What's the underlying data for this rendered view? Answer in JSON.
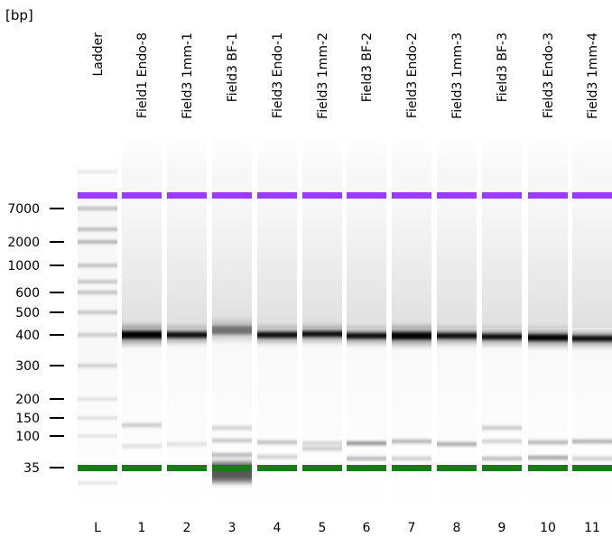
{
  "unit_label": "[bp]",
  "lanes": [
    {
      "num": "L",
      "name": "Ladder"
    },
    {
      "num": "1",
      "name": "Field1 Endo-8"
    },
    {
      "num": "2",
      "name": "Field3 1mm-1"
    },
    {
      "num": "3",
      "name": "Field3 BF-1"
    },
    {
      "num": "4",
      "name": "Field3 Endo-1"
    },
    {
      "num": "5",
      "name": "Field3 1mm-2"
    },
    {
      "num": "6",
      "name": "Field3 BF-2"
    },
    {
      "num": "7",
      "name": "Field3 Endo-2"
    },
    {
      "num": "8",
      "name": "Field3 1mm-3"
    },
    {
      "num": "9",
      "name": "Field3 BF-3"
    },
    {
      "num": "10",
      "name": "Field3 Endo-3"
    },
    {
      "num": "11",
      "name": "Field3 1mm-4"
    }
  ],
  "size_markers": [
    {
      "label": "7000",
      "bp": 7000
    },
    {
      "label": "2000",
      "bp": 2000
    },
    {
      "label": "1000",
      "bp": 1000
    },
    {
      "label": "600",
      "bp": 600
    },
    {
      "label": "500",
      "bp": 500
    },
    {
      "label": "400",
      "bp": 400
    },
    {
      "label": "300",
      "bp": 300
    },
    {
      "label": "200",
      "bp": 200
    },
    {
      "label": "150",
      "bp": 150
    },
    {
      "label": "100",
      "bp": 100
    },
    {
      "label": "35",
      "bp": 35
    }
  ],
  "colors": {
    "upper_marker": "#9a3cff",
    "lower_marker": "#1a7a1a",
    "band": "#000000"
  }
}
